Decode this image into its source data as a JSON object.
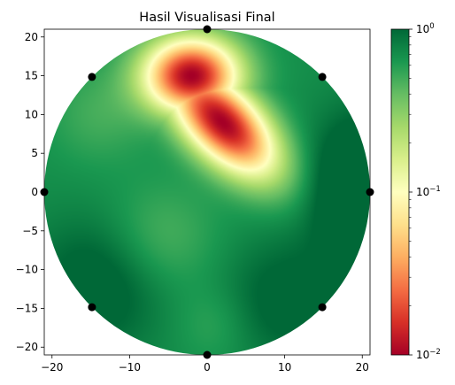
{
  "chart_data": {
    "type": "heatmap",
    "title": "Hasil Visualisasi Final",
    "xlabel": "",
    "ylabel": "",
    "xlim": [
      -21,
      21
    ],
    "ylim": [
      -21,
      21
    ],
    "x_ticks": [
      -20,
      -10,
      0,
      10,
      20
    ],
    "y_ticks": [
      -20,
      -15,
      -10,
      -5,
      0,
      5,
      10,
      15,
      20
    ],
    "x_tick_labels": [
      "−20",
      "−10",
      "0",
      "10",
      "20"
    ],
    "y_tick_labels": [
      "−20",
      "−15",
      "−10",
      "−5",
      "0",
      "5",
      "10",
      "15",
      "20"
    ],
    "domain": "circle",
    "domain_radius": 21,
    "colormap": "RdYlGn",
    "color_scale": "log",
    "color_range": [
      0.01,
      1
    ],
    "colorbar_ticks": [
      {
        "value": 1,
        "base": "10",
        "exp": "0"
      },
      {
        "value": 0.1,
        "base": "10",
        "exp": "−1"
      },
      {
        "value": 0.01,
        "base": "10",
        "exp": "−2"
      }
    ],
    "low_region_center": [
      2,
      9
    ],
    "markers": [
      {
        "x": 0,
        "y": 21
      },
      {
        "x": 14.85,
        "y": 14.85
      },
      {
        "x": 21,
        "y": 0
      },
      {
        "x": 14.85,
        "y": -14.85
      },
      {
        "x": 0,
        "y": -21
      },
      {
        "x": -14.85,
        "y": -14.85
      },
      {
        "x": -21,
        "y": 0
      },
      {
        "x": -14.85,
        "y": 14.85
      }
    ],
    "marker_color": "#000000",
    "grid": false
  }
}
